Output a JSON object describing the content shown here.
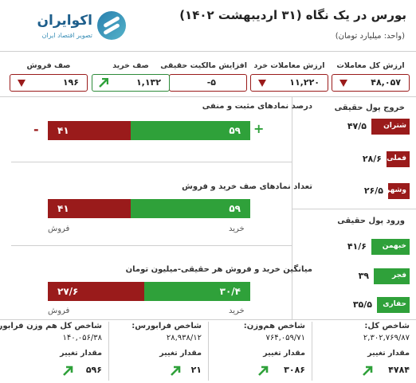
{
  "header": {
    "title": "بورس در یک نگاه (۳۱ اردیبهشت ۱۴۰۲)",
    "unit": "(واحد: میلیارد تومان)",
    "logo_name": "اکوایران",
    "logo_tagline": "تصویر اقتصاد ایران"
  },
  "stats": [
    {
      "label": "ارزش کل معاملات",
      "value": "۴۸,۰۵۷",
      "arrow": "down",
      "color": "#9a1b1b"
    },
    {
      "label": "ارزش معاملات خرد",
      "value": "۱۱,۲۲۰",
      "arrow": "down",
      "color": "#9a1b1b"
    },
    {
      "label": "افزایش مالکیت حقیقی",
      "value": "-۵",
      "arrow": "none",
      "color": "#9a1b1b"
    },
    {
      "label": "صف خرید",
      "value": "۱,۱۳۲",
      "arrow": "up",
      "color": "#2e8b3a"
    },
    {
      "label": "صف فروش",
      "value": "۱۹۶",
      "arrow": "down",
      "color": "#9a1b1b"
    }
  ],
  "money_out": {
    "title": "خروج پول حقیقی",
    "items": [
      {
        "name": "شتران",
        "value": "۴۷/۵",
        "fraction": 1.0
      },
      {
        "name": "فملی",
        "value": "۲۸/۶",
        "fraction": 0.6
      },
      {
        "name": "وشهر",
        "value": "۲۶/۵",
        "fraction": 0.56
      }
    ]
  },
  "money_in": {
    "title": "ورود پول حقیقی",
    "items": [
      {
        "name": "خبهمن",
        "value": "۴۱/۶",
        "fraction": 1.0
      },
      {
        "name": "فجر",
        "value": "۳۹",
        "fraction": 0.94
      },
      {
        "name": "حفاری",
        "value": "۳۵/۵",
        "fraction": 0.85
      }
    ]
  },
  "panels": [
    {
      "title": "درصد نمادهای مثبت و منفی",
      "negative": "۴۱",
      "positive": "۵۹",
      "negative_pct": 41,
      "plus_sign": "+",
      "minus_sign": "-",
      "buy_caption": "",
      "sell_caption": ""
    },
    {
      "title": "تعداد نمادهای صف خرید و فروش",
      "negative": "۴۱",
      "positive": "۵۹",
      "negative_pct": 41,
      "buy_caption": "خرید",
      "sell_caption": "فروش"
    },
    {
      "title": "میانگین خرید و فروش هر حقیقی-میلیون تومان",
      "negative": "۲۷/۶",
      "positive": "۳۰/۴",
      "negative_pct": 47.6,
      "buy_caption": "خرید",
      "sell_caption": "فروش"
    }
  ],
  "indices": [
    {
      "title": "شاخص کل:",
      "value": "۲,۳۰۲,۷۶۹/۸۷",
      "change_label": "مقدار تغییر",
      "change": "۴۷۸۴",
      "arrow": "up"
    },
    {
      "title": "شاخص هم‌وزن:",
      "value": "۷۶۴,۰۵۹/۷۱",
      "change_label": "مقدار تغییر",
      "change": "۳۰۸۶",
      "arrow": "up"
    },
    {
      "title": "شاخص فرابورس:",
      "value": "۲۸,۹۳۸/۱۲",
      "change_label": "مقدار تغییر",
      "change": "۲۱",
      "arrow": "up"
    },
    {
      "title": "شاخص کل هم وزن فرابورس:",
      "value": "۱۴۰,۰۵۶/۳۸",
      "change_label": "مقدار تغییر",
      "change": "۵۹۶",
      "arrow": "up"
    }
  ],
  "colors": {
    "red": "#9a1b1b",
    "green": "#2fa13a"
  }
}
